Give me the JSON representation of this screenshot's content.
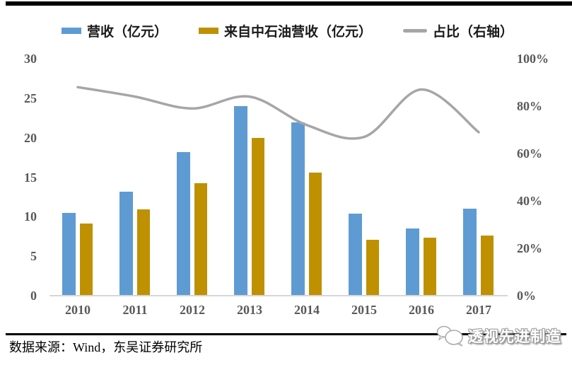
{
  "legend": {
    "items": [
      {
        "label": "营收（亿元）",
        "color": "#5E9BD3",
        "type": "bar"
      },
      {
        "label": "来自中石油营收（亿元）",
        "color": "#BF9000",
        "type": "bar"
      },
      {
        "label": "占比（右轴）",
        "color": "#A6A6A6",
        "type": "line"
      }
    ]
  },
  "chart_data": {
    "type": "bar",
    "subtype": "grouped-bars-with-line-dual-axis",
    "categories": [
      "2010",
      "2011",
      "2012",
      "2013",
      "2014",
      "2015",
      "2016",
      "2017"
    ],
    "series": [
      {
        "name": "营收（亿元）",
        "type": "bar",
        "axis": "left",
        "color": "#5E9BD3",
        "values": [
          10.5,
          13.2,
          18.2,
          24.0,
          21.9,
          10.4,
          8.5,
          11.0
        ]
      },
      {
        "name": "来自中石油营收（亿元）",
        "type": "bar",
        "axis": "left",
        "color": "#BF9000",
        "values": [
          9.1,
          10.9,
          14.2,
          20.0,
          15.6,
          7.1,
          7.3,
          7.6
        ]
      },
      {
        "name": "占比（右轴）",
        "type": "line",
        "axis": "right",
        "color": "#A6A6A6",
        "values_percent": [
          88,
          84,
          79,
          84,
          72,
          67,
          87,
          69
        ]
      }
    ],
    "left_axis": {
      "ticks": [
        "0",
        "5",
        "10",
        "15",
        "20",
        "25",
        "30"
      ],
      "tick_values": [
        0,
        5,
        10,
        15,
        20,
        25,
        30
      ],
      "range": [
        0,
        30
      ]
    },
    "right_axis": {
      "ticks": [
        "0%",
        "20%",
        "40%",
        "60%",
        "80%",
        "100%"
      ],
      "tick_values": [
        0,
        20,
        40,
        60,
        80,
        100
      ],
      "range": [
        0,
        100
      ]
    },
    "grid": false,
    "legend_position": "top"
  },
  "footer": {
    "source_text": "数据来源：Wind，东吴证券研究所",
    "logo_text": "透视先进制造",
    "logo_icon": "chat-bubbles-icon"
  }
}
